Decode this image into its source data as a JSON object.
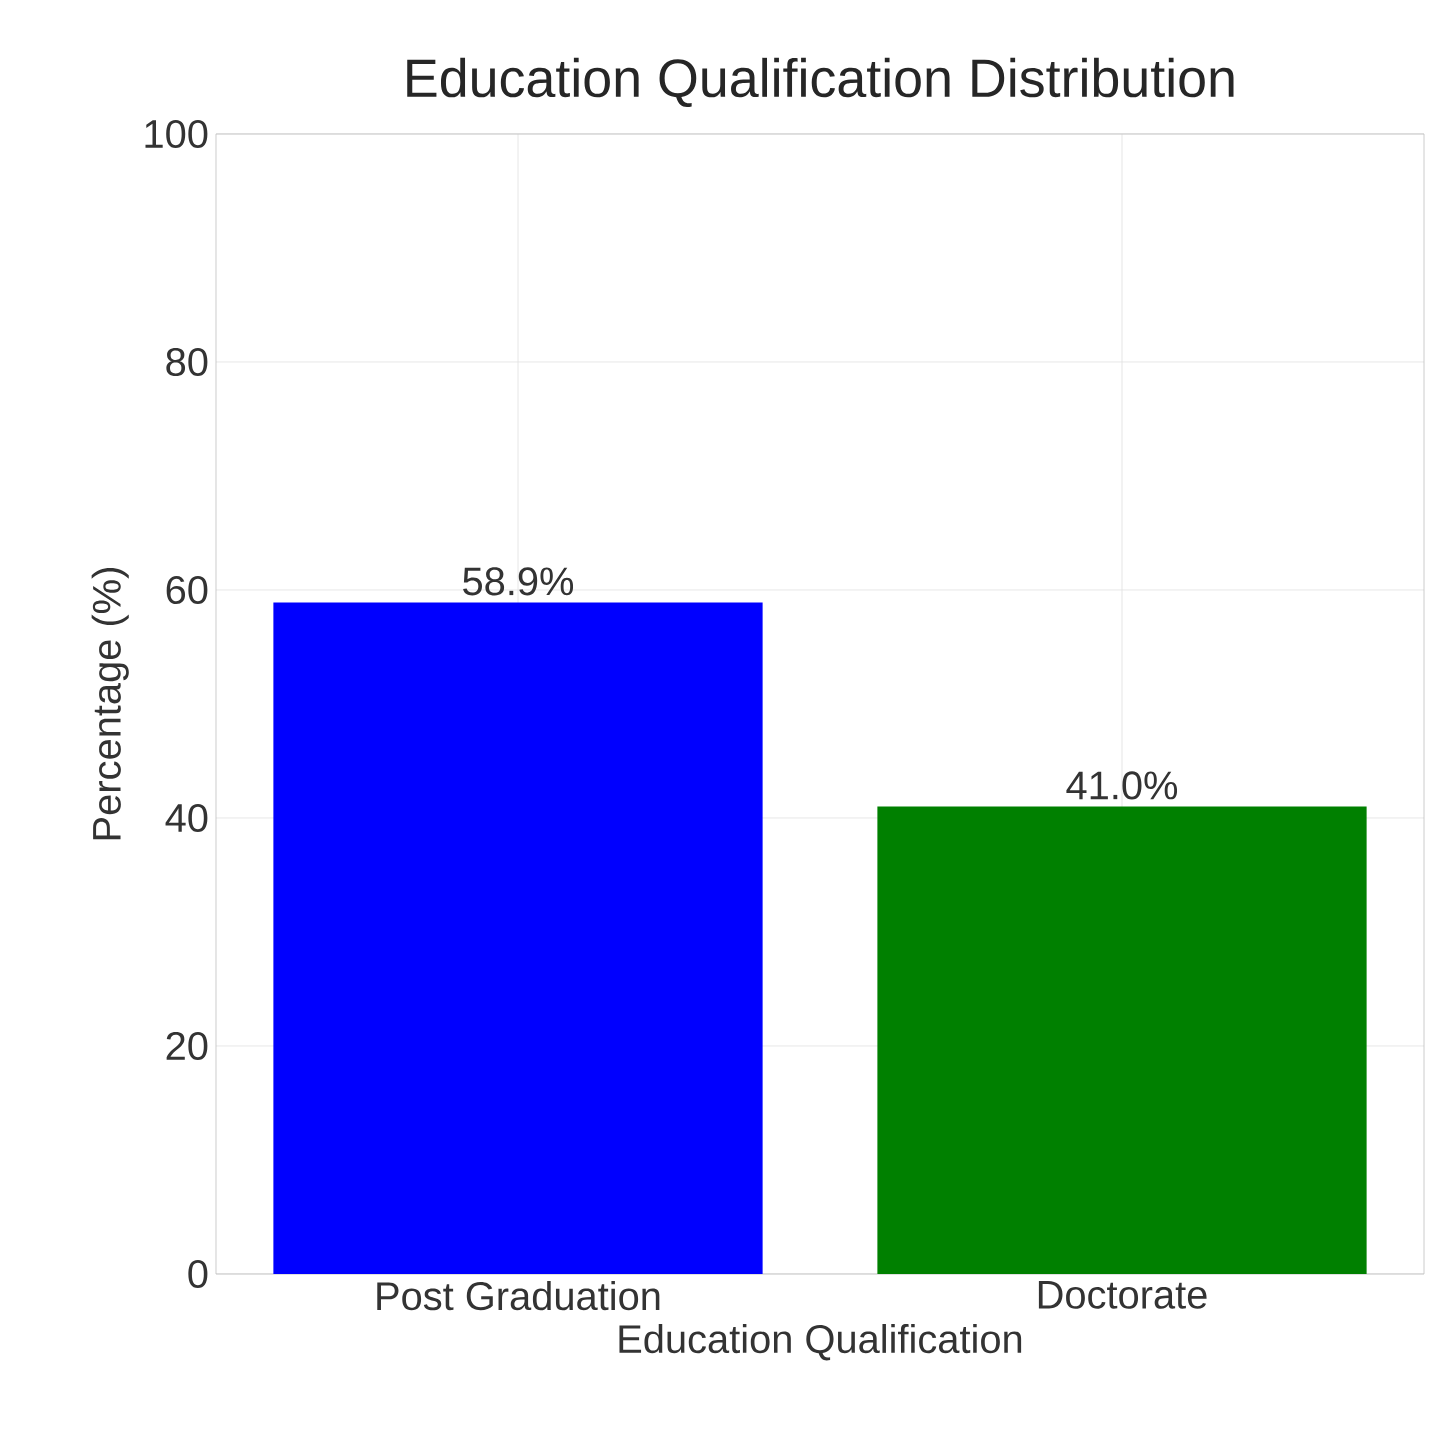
{
  "chart_data": {
    "type": "bar",
    "title": "Education Qualification Distribution",
    "xlabel": "Education Qualification",
    "ylabel": "Percentage (%)",
    "categories": [
      "Post Graduation",
      "Doctorate"
    ],
    "values": [
      58.9,
      41.0
    ],
    "colors": [
      "#0000ff",
      "#008000"
    ],
    "value_labels": [
      "58.9%",
      "41.0%"
    ],
    "ylim": [
      0,
      100
    ],
    "yticks": [
      0,
      20,
      40,
      60,
      80,
      100
    ],
    "grid": true
  }
}
